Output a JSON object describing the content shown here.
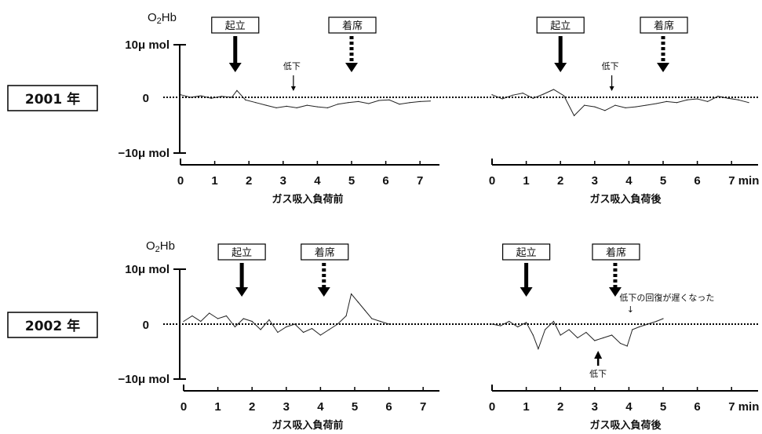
{
  "figure": {
    "yaxis_name": "O2Hb",
    "unit": "μ mol",
    "y_tick_labels": [
      "10μ mol",
      "0",
      "−10μ mol"
    ],
    "x_unit": "min"
  },
  "labels": {
    "stand": "起立",
    "sit": "着席",
    "decrease": "低下",
    "slow_recovery": "低下の回復が遅くなった",
    "down_arrow": "↓",
    "up_arrow": "↑"
  },
  "chart_data": [
    {
      "type": "line",
      "row_label": "2001 年",
      "xlabel": "ガス吸入負荷前",
      "xticks": [
        "0",
        "1",
        "2",
        "3",
        "4",
        "5",
        "6",
        "7"
      ],
      "xlim": [
        0,
        7.5
      ],
      "ylim": [
        -10,
        10
      ],
      "events": {
        "stand": 1.6,
        "sit": 5.0,
        "decrease": 3.3
      },
      "series": [
        {
          "x": [
            0.0,
            0.3,
            0.6,
            0.9,
            1.2,
            1.5,
            1.65,
            1.9,
            2.2,
            2.5,
            2.8,
            3.1,
            3.4,
            3.7,
            4.0,
            4.3,
            4.6,
            4.9,
            5.2,
            5.5,
            5.8,
            6.1,
            6.4,
            6.7,
            7.0,
            7.3
          ],
          "values": [
            0.5,
            0,
            0.3,
            -0.2,
            0.2,
            0,
            1.3,
            -0.5,
            -1,
            -1.5,
            -2,
            -1.7,
            -2,
            -1.5,
            -1.8,
            -2,
            -1.3,
            -1,
            -0.8,
            -1.2,
            -0.6,
            -0.5,
            -1.3,
            -1,
            -0.8,
            -0.7
          ]
        }
      ]
    },
    {
      "type": "line",
      "row_label": "2001 年",
      "xlabel": "ガス吸入負荷後",
      "xticks": [
        "0",
        "1",
        "2",
        "3",
        "4",
        "5",
        "6",
        "7"
      ],
      "xlim": [
        0,
        7.5
      ],
      "ylim": [
        -10,
        10
      ],
      "events": {
        "stand": 2.0,
        "sit": 5.0,
        "decrease": 3.5
      },
      "series": [
        {
          "x": [
            0.0,
            0.3,
            0.6,
            0.9,
            1.2,
            1.5,
            1.8,
            2.1,
            2.4,
            2.7,
            3.0,
            3.3,
            3.6,
            3.9,
            4.2,
            4.5,
            4.8,
            5.1,
            5.4,
            5.7,
            6.0,
            6.3,
            6.6,
            6.9,
            7.2,
            7.5
          ],
          "values": [
            0.5,
            -0.3,
            0.4,
            0.8,
            -0.2,
            0.6,
            1.5,
            0.3,
            -3.5,
            -1.5,
            -1.8,
            -2.5,
            -1.5,
            -2,
            -1.8,
            -1.5,
            -1.2,
            -0.8,
            -1,
            -0.5,
            -0.3,
            -0.8,
            0.2,
            -0.2,
            -0.5,
            -1
          ]
        }
      ]
    },
    {
      "type": "line",
      "row_label": "2002 年",
      "xlabel": "ガス吸入負荷前",
      "xticks": [
        "0",
        "1",
        "2",
        "3",
        "4",
        "5",
        "6",
        "7"
      ],
      "xlim": [
        0,
        7.5
      ],
      "ylim": [
        -10,
        10
      ],
      "events": {
        "stand": 1.7,
        "sit": 4.1
      },
      "series": [
        {
          "x": [
            0.0,
            0.25,
            0.5,
            0.75,
            1.0,
            1.25,
            1.5,
            1.75,
            2.0,
            2.25,
            2.5,
            2.75,
            3.0,
            3.25,
            3.5,
            3.75,
            4.0,
            4.25,
            4.5,
            4.75,
            4.9,
            5.1,
            5.3,
            5.5,
            5.75,
            6.0
          ],
          "values": [
            0.5,
            1.5,
            0.5,
            2,
            1,
            1.5,
            -0.5,
            1,
            0.5,
            -1,
            0.8,
            -1.5,
            -0.5,
            0,
            -1.5,
            -0.8,
            -2,
            -1,
            0,
            1.5,
            5.5,
            4,
            2.5,
            1,
            0.5,
            0
          ]
        }
      ]
    },
    {
      "type": "line",
      "row_label": "2002 年",
      "xlabel": "ガス吸入負荷後",
      "xticks": [
        "0",
        "1",
        "2",
        "3",
        "4",
        "5",
        "6",
        "7"
      ],
      "xlim": [
        0,
        7.5
      ],
      "ylim": [
        -10,
        10
      ],
      "events": {
        "stand": 1.0,
        "sit": 3.6,
        "decrease": 3.1,
        "slow_recovery": 4.0
      },
      "series": [
        {
          "x": [
            0.0,
            0.25,
            0.5,
            0.75,
            1.0,
            1.2,
            1.35,
            1.55,
            1.8,
            2.0,
            2.25,
            2.5,
            2.75,
            3.0,
            3.25,
            3.5,
            3.75,
            3.95,
            4.1,
            4.3,
            4.55,
            4.8,
            5.0
          ],
          "values": [
            0,
            -0.3,
            0.5,
            -0.5,
            0.3,
            -2,
            -4.5,
            -1,
            0.5,
            -2,
            -1,
            -2.5,
            -1.5,
            -3,
            -2.5,
            -2,
            -3.5,
            -4,
            -1,
            -0.5,
            0,
            0.5,
            1
          ]
        }
      ]
    }
  ]
}
